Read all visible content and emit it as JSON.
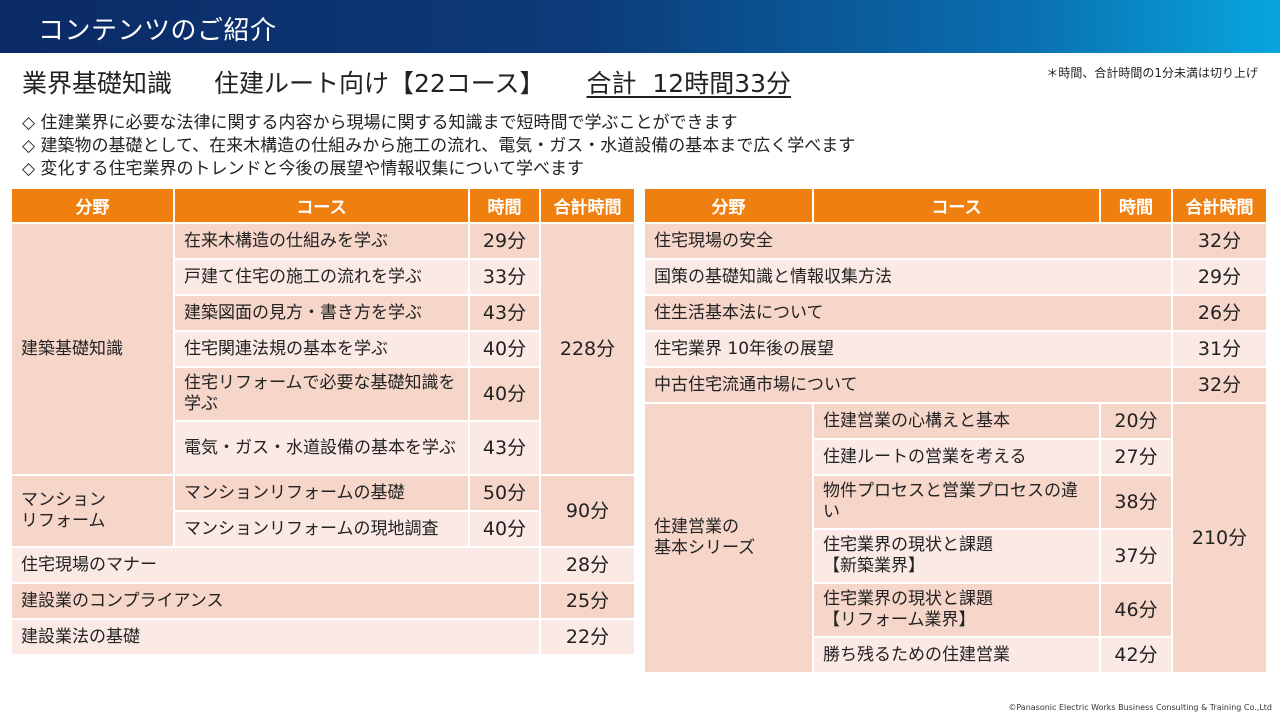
{
  "banner": {
    "title": "コンテンツのご紹介"
  },
  "headline": {
    "category": "業界基礎知識",
    "route": "住建ルート向け【22コース】",
    "total": "合計  12時間33分"
  },
  "note": "＊時間、合計時間の1分未満は切り上げ",
  "bullets": [
    "◇ 住建業界に必要な法律に関する内容から現場に関する知識まで短時間で学ぶことができます",
    "◇ 建築物の基礎として、在来木構造の仕組みから施工の流れ、電気・ガス・水道設備の基本まで広く学べます",
    "◇ 変化する住宅業界のトレンドと今後の展望や情報収集について学べます"
  ],
  "table_headers": [
    "分野",
    "コース",
    "時間",
    "合計時間"
  ],
  "left_table": [
    {
      "field": "建築基礎知識",
      "total": "228分",
      "courses": [
        [
          "在来木構造の仕組みを学ぶ",
          "29分"
        ],
        [
          "戸建て住宅の施工の流れを学ぶ",
          "33分"
        ],
        [
          "建築図面の見方・書き方を学ぶ",
          "43分"
        ],
        [
          "住宅関連法規の基本を学ぶ",
          "40分"
        ],
        [
          "住宅リフォームで必要な基礎知識を学ぶ",
          "40分"
        ],
        [
          "電気・ガス・水道設備の基本を学ぶ",
          "43分"
        ]
      ]
    },
    {
      "field": "マンション\nリフォーム",
      "total": "90分",
      "courses": [
        [
          "マンションリフォームの基礎",
          "50分"
        ],
        [
          "マンションリフォームの現地調査",
          "40分"
        ]
      ]
    },
    {
      "field": "住宅現場のマナー",
      "total": "28分"
    },
    {
      "field": "建設業のコンプライアンス",
      "total": "25分"
    },
    {
      "field": "建設業法の基礎",
      "total": "22分"
    }
  ],
  "right_table": [
    {
      "field": "住宅現場の安全",
      "total": "32分"
    },
    {
      "field": "国策の基礎知識と情報収集方法",
      "total": "29分"
    },
    {
      "field": "住生活基本法について",
      "total": "26分"
    },
    {
      "field": "住宅業界 10年後の展望",
      "total": "31分"
    },
    {
      "field": "中古住宅流通市場について",
      "total": "32分"
    },
    {
      "field": "住建営業の\n基本シリーズ",
      "total": "210分",
      "courses": [
        [
          "住建営業の心構えと基本",
          "20分"
        ],
        [
          "住建ルートの営業を考える",
          "27分"
        ],
        [
          "物件プロセスと営業プロセスの違い",
          "38分"
        ],
        [
          "住宅業界の現状と課題\n【新築業界】",
          "37分"
        ],
        [
          "住宅業界の現状と課題\n【リフォーム業界】",
          "46分"
        ],
        [
          "勝ち残るための住建営業",
          "42分"
        ]
      ]
    }
  ],
  "copyright": "©Panasonic Electric Works Business Consulting & Training Co.,Ltd",
  "colors": {
    "header": "#ef800f",
    "row_dark": "#f7d6ca",
    "row_light": "#fbe9e5",
    "banner": "#0b2a66"
  }
}
